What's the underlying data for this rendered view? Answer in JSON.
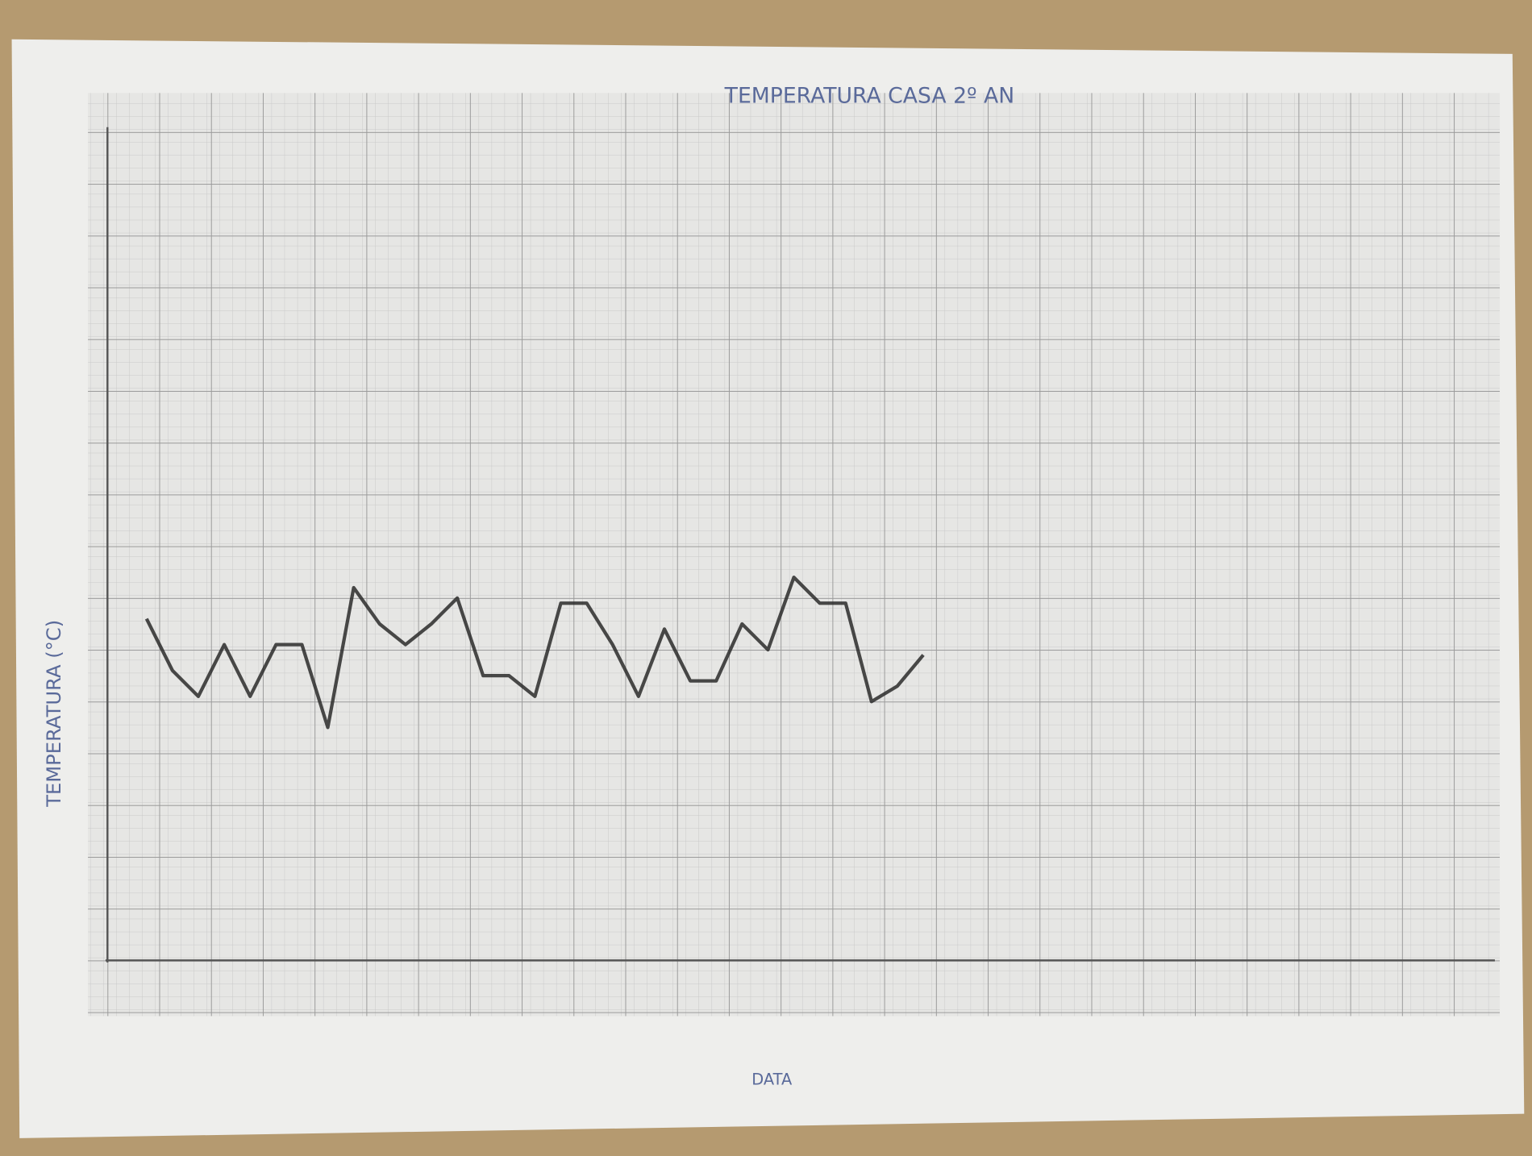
{
  "chart_data": {
    "type": "line",
    "title": "TEMPERATURA CASA 2º AN",
    "y_label": "TEMPERATURA (°C)",
    "x_label": "DATA",
    "color": "#2a2a2a",
    "ylim": [
      0,
      16
    ],
    "values": [
      6.6,
      5.6,
      5.1,
      6.1,
      5.1,
      6.1,
      6.1,
      4.5,
      7.2,
      6.5,
      6.1,
      6.5,
      7.0,
      5.5,
      5.5,
      5.1,
      6.9,
      6.9,
      6.1,
      5.1,
      6.4,
      5.4,
      5.4,
      6.5,
      6.0,
      7.4,
      6.9,
      6.9,
      5.0,
      5.3,
      5.9
    ]
  }
}
